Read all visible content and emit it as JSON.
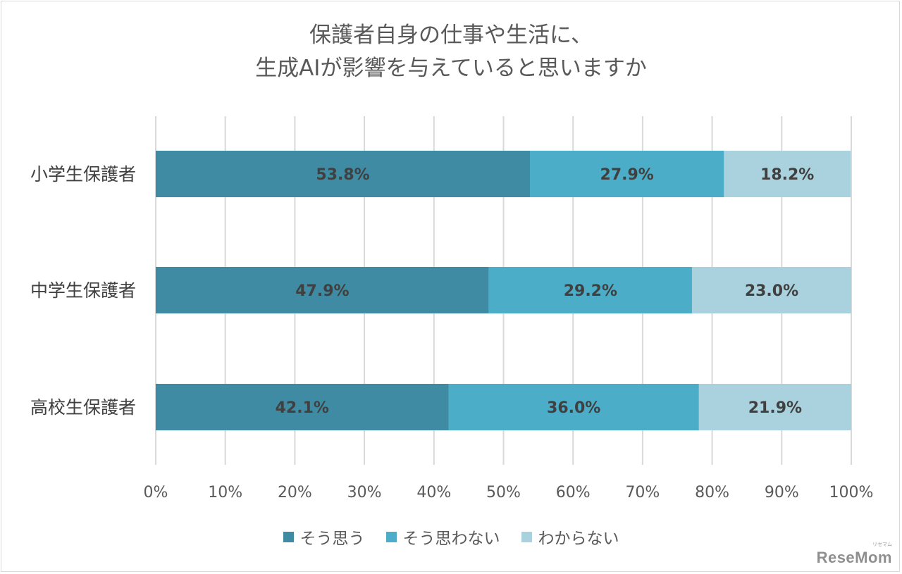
{
  "chart_data": {
    "type": "bar",
    "orientation": "horizontal",
    "stacked": true,
    "title_line1": "保護者自身の仕事や生活に、",
    "title_line2": "生成AIが影響を与えていると思いますか",
    "categories": [
      "小学生保護者",
      "中学生保護者",
      "高校生保護者"
    ],
    "series": [
      {
        "name": "そう思う",
        "color": "#3e8ba3",
        "values": [
          53.8,
          47.9,
          42.1
        ]
      },
      {
        "name": "そう思わない",
        "color": "#4badc8",
        "values": [
          27.9,
          29.2,
          36.0
        ]
      },
      {
        "name": "わからない",
        "color": "#a9d2de",
        "values": [
          18.2,
          23.0,
          21.9
        ]
      }
    ],
    "xlim": [
      0,
      100
    ],
    "xticks": [
      "0%",
      "10%",
      "20%",
      "30%",
      "40%",
      "50%",
      "60%",
      "70%",
      "80%",
      "90%",
      "100%"
    ],
    "grid": true,
    "legend_position": "bottom",
    "value_suffix": "%"
  },
  "logo": {
    "text": "ReseMom",
    "sub": "リセマム"
  }
}
